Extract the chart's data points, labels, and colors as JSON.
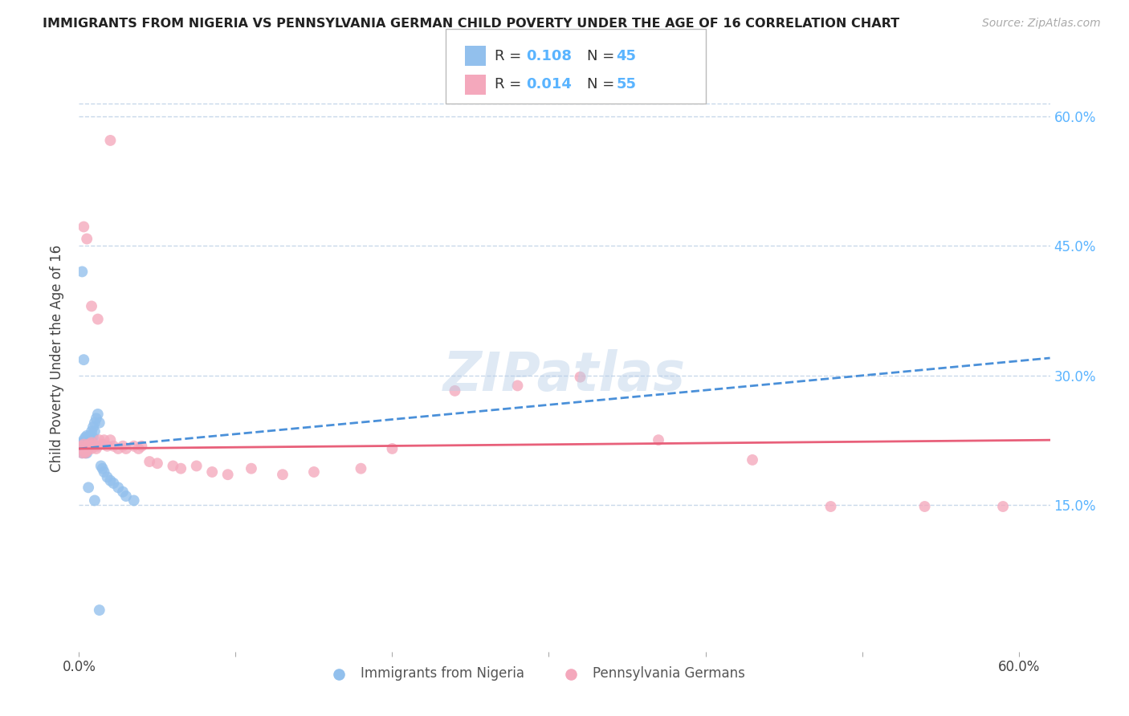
{
  "title": "IMMIGRANTS FROM NIGERIA VS PENNSYLVANIA GERMAN CHILD POVERTY UNDER THE AGE OF 16 CORRELATION CHART",
  "source": "Source: ZipAtlas.com",
  "ylabel": "Child Poverty Under the Age of 16",
  "legend_label1": "Immigrants from Nigeria",
  "legend_label2": "Pennsylvania Germans",
  "blue_color": "#92c0ed",
  "pink_color": "#f4a8bc",
  "blue_line_color": "#4a90d9",
  "pink_line_color": "#e8607a",
  "title_color": "#222222",
  "axis_label_color": "#5ab4ff",
  "grid_color": "#c8d8ea",
  "watermark": "ZIPatlas",
  "xlim": [
    0.0,
    0.62
  ],
  "ylim": [
    -0.02,
    0.66
  ],
  "y_tick_vals": [
    0.15,
    0.3,
    0.45,
    0.6
  ],
  "y_tick_labels": [
    "15.0%",
    "30.0%",
    "45.0%",
    "60.0%"
  ],
  "blue_x": [
    0.001,
    0.001,
    0.002,
    0.002,
    0.002,
    0.003,
    0.003,
    0.003,
    0.004,
    0.004,
    0.004,
    0.005,
    0.005,
    0.005,
    0.005,
    0.006,
    0.006,
    0.006,
    0.007,
    0.007,
    0.007,
    0.008,
    0.008,
    0.009,
    0.009,
    0.01,
    0.01,
    0.011,
    0.012,
    0.013,
    0.014,
    0.015,
    0.016,
    0.018,
    0.02,
    0.022,
    0.025,
    0.028,
    0.03,
    0.035,
    0.002,
    0.003,
    0.006,
    0.01,
    0.013
  ],
  "blue_y": [
    0.22,
    0.215,
    0.222,
    0.218,
    0.21,
    0.225,
    0.22,
    0.215,
    0.228,
    0.218,
    0.21,
    0.23,
    0.22,
    0.215,
    0.21,
    0.228,
    0.222,
    0.215,
    0.23,
    0.225,
    0.218,
    0.235,
    0.225,
    0.24,
    0.228,
    0.245,
    0.235,
    0.25,
    0.255,
    0.245,
    0.195,
    0.192,
    0.188,
    0.182,
    0.178,
    0.175,
    0.17,
    0.165,
    0.16,
    0.155,
    0.42,
    0.318,
    0.17,
    0.155,
    0.028
  ],
  "pink_x": [
    0.001,
    0.002,
    0.002,
    0.003,
    0.003,
    0.004,
    0.004,
    0.005,
    0.005,
    0.006,
    0.006,
    0.007,
    0.008,
    0.008,
    0.009,
    0.01,
    0.011,
    0.012,
    0.013,
    0.015,
    0.016,
    0.018,
    0.02,
    0.022,
    0.025,
    0.028,
    0.03,
    0.035,
    0.038,
    0.04,
    0.045,
    0.05,
    0.06,
    0.065,
    0.075,
    0.085,
    0.095,
    0.11,
    0.13,
    0.15,
    0.18,
    0.2,
    0.24,
    0.28,
    0.32,
    0.37,
    0.43,
    0.48,
    0.54,
    0.59,
    0.003,
    0.005,
    0.008,
    0.012,
    0.02
  ],
  "pink_y": [
    0.215,
    0.218,
    0.21,
    0.22,
    0.212,
    0.215,
    0.21,
    0.218,
    0.212,
    0.22,
    0.215,
    0.218,
    0.222,
    0.215,
    0.22,
    0.218,
    0.215,
    0.218,
    0.225,
    0.22,
    0.225,
    0.218,
    0.225,
    0.218,
    0.215,
    0.218,
    0.215,
    0.218,
    0.215,
    0.218,
    0.2,
    0.198,
    0.195,
    0.192,
    0.195,
    0.188,
    0.185,
    0.192,
    0.185,
    0.188,
    0.192,
    0.215,
    0.282,
    0.288,
    0.298,
    0.225,
    0.202,
    0.148,
    0.148,
    0.148,
    0.472,
    0.458,
    0.38,
    0.365,
    0.572
  ]
}
